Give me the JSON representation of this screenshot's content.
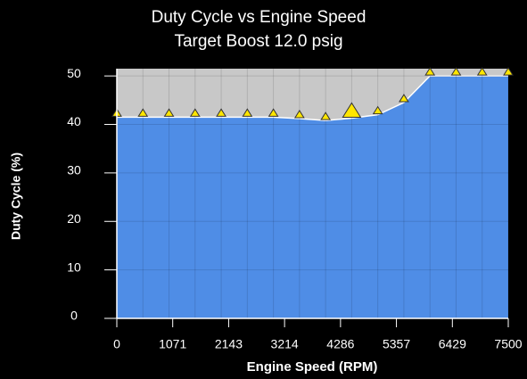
{
  "chart_data": {
    "type": "area",
    "title": "Duty Cycle vs Engine Speed",
    "subtitle": "Target Boost 12.0 psig",
    "xlabel": "Engine Speed (RPM)",
    "ylabel": "Duty Cycle (%)",
    "x": [
      0,
      500,
      1000,
      1500,
      2000,
      2500,
      3000,
      3500,
      4000,
      4500,
      5000,
      5500,
      6000,
      6500,
      7000,
      7500
    ],
    "values": [
      41.5,
      41.5,
      41.5,
      41.5,
      41.5,
      41.5,
      41.5,
      41.2,
      40.8,
      41.3,
      42,
      44.5,
      50,
      50,
      50,
      50
    ],
    "selected": 9,
    "color": "#4f8de6",
    "background_color": "#c8c8c8",
    "marker_color": "#ffe600",
    "xlim": [
      0,
      7500
    ],
    "xticks": [
      0,
      1071,
      2143,
      3214,
      4286,
      5357,
      6429,
      7500
    ],
    "ylim": [
      0,
      51.5
    ],
    "yticks": [
      0,
      10,
      20,
      30,
      40,
      50
    ],
    "grid": true
  }
}
